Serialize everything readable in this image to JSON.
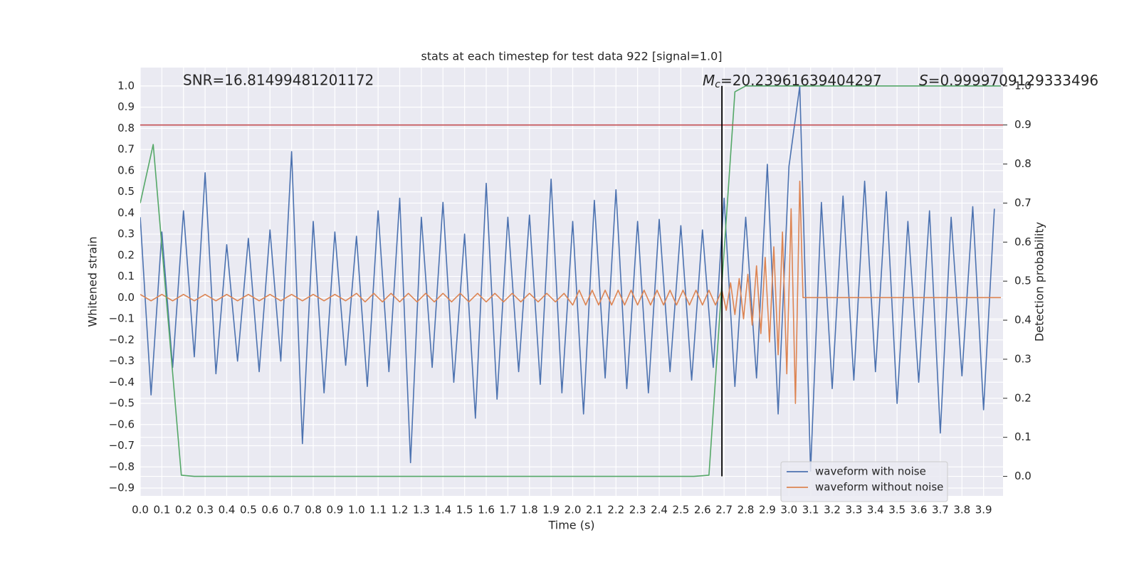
{
  "chart_data": {
    "type": "line",
    "title": "stats at each timestep for test data 922 [signal=1.0]",
    "xlabel": "Time (s)",
    "ylabel": "Whitened strain",
    "y2label": "Detection probability",
    "grid": true,
    "legend": "lower right",
    "xlim": [
      0,
      3.99
    ],
    "ylim": [
      -0.937,
      1.087
    ],
    "y2lim": [
      -0.05,
      1.047
    ],
    "xticks": [
      {
        "value": 0,
        "label": "0.0"
      },
      {
        "value": 0.1,
        "label": "0.1"
      },
      {
        "value": 0.2,
        "label": "0.2"
      },
      {
        "value": 0.3,
        "label": "0.3"
      },
      {
        "value": 0.4,
        "label": "0.4"
      },
      {
        "value": 0.5,
        "label": "0.5"
      },
      {
        "value": 0.6,
        "label": "0.6"
      },
      {
        "value": 0.7,
        "label": "0.7"
      },
      {
        "value": 0.8,
        "label": "0.8"
      },
      {
        "value": 0.9,
        "label": "0.9"
      },
      {
        "value": 1.0,
        "label": "1.0"
      },
      {
        "value": 1.1,
        "label": "1.1"
      },
      {
        "value": 1.2,
        "label": "1.2"
      },
      {
        "value": 1.3,
        "label": "1.3"
      },
      {
        "value": 1.4,
        "label": "1.4"
      },
      {
        "value": 1.5,
        "label": "1.5"
      },
      {
        "value": 1.6,
        "label": "1.6"
      },
      {
        "value": 1.7,
        "label": "1.7"
      },
      {
        "value": 1.8,
        "label": "1.8"
      },
      {
        "value": 1.9,
        "label": "1.9"
      },
      {
        "value": 2.0,
        "label": "2.0"
      },
      {
        "value": 2.1,
        "label": "2.1"
      },
      {
        "value": 2.2,
        "label": "2.2"
      },
      {
        "value": 2.3,
        "label": "2.3"
      },
      {
        "value": 2.4,
        "label": "2.4"
      },
      {
        "value": 2.5,
        "label": "2.5"
      },
      {
        "value": 2.6,
        "label": "2.6"
      },
      {
        "value": 2.7,
        "label": "2.7"
      },
      {
        "value": 2.8,
        "label": "2.8"
      },
      {
        "value": 2.9,
        "label": "2.9"
      },
      {
        "value": 3.0,
        "label": "3.0"
      },
      {
        "value": 3.1,
        "label": "3.1"
      },
      {
        "value": 3.2,
        "label": "3.2"
      },
      {
        "value": 3.3,
        "label": "3.3"
      },
      {
        "value": 3.4,
        "label": "3.4"
      },
      {
        "value": 3.5,
        "label": "3.5"
      },
      {
        "value": 3.6,
        "label": "3.6"
      },
      {
        "value": 3.7,
        "label": "3.7"
      },
      {
        "value": 3.8,
        "label": "3.8"
      },
      {
        "value": 3.9,
        "label": "3.9"
      }
    ],
    "yticks": [
      {
        "value": -0.9,
        "label": "−0.9"
      },
      {
        "value": -0.8,
        "label": "−0.8"
      },
      {
        "value": -0.7,
        "label": "−0.7"
      },
      {
        "value": -0.6,
        "label": "−0.6"
      },
      {
        "value": -0.5,
        "label": "−0.5"
      },
      {
        "value": -0.4,
        "label": "−0.4"
      },
      {
        "value": -0.3,
        "label": "−0.3"
      },
      {
        "value": -0.2,
        "label": "−0.2"
      },
      {
        "value": -0.1,
        "label": "−0.1"
      },
      {
        "value": 0,
        "label": "0.0"
      },
      {
        "value": 0.1,
        "label": "0.1"
      },
      {
        "value": 0.2,
        "label": "0.2"
      },
      {
        "value": 0.3,
        "label": "0.3"
      },
      {
        "value": 0.4,
        "label": "0.4"
      },
      {
        "value": 0.5,
        "label": "0.5"
      },
      {
        "value": 0.6,
        "label": "0.6"
      },
      {
        "value": 0.7,
        "label": "0.7"
      },
      {
        "value": 0.8,
        "label": "0.8"
      },
      {
        "value": 0.9,
        "label": "0.9"
      },
      {
        "value": 1.0,
        "label": "1.0"
      }
    ],
    "y2ticks": [
      {
        "value": 0,
        "label": "0.0"
      },
      {
        "value": 0.1,
        "label": "0.1"
      },
      {
        "value": 0.2,
        "label": "0.2"
      },
      {
        "value": 0.3,
        "label": "0.3"
      },
      {
        "value": 0.4,
        "label": "0.4"
      },
      {
        "value": 0.5,
        "label": "0.5"
      },
      {
        "value": 0.6,
        "label": "0.6"
      },
      {
        "value": 0.7,
        "label": "0.7"
      },
      {
        "value": 0.8,
        "label": "0.8"
      },
      {
        "value": 0.9,
        "label": "0.9"
      },
      {
        "value": 1.0,
        "label": "1.0"
      }
    ],
    "annotations": {
      "snr": "SNR=16.81499481201172",
      "mass_symbol": "M",
      "mass_subscript": "c",
      "mass_value": "=20.23961639404297",
      "s_symbol": "S",
      "s_value": "=0.9999709129333496"
    },
    "series": [
      {
        "name": "waveform with noise",
        "color": "#4c72b0",
        "axis": "y",
        "x": [
          0,
          0.05,
          0.1,
          0.15,
          0.2,
          0.25,
          0.3,
          0.35,
          0.4,
          0.45,
          0.5,
          0.55,
          0.6,
          0.65,
          0.7,
          0.75,
          0.8,
          0.85,
          0.9,
          0.95,
          1.0,
          1.05,
          1.1,
          1.15,
          1.2,
          1.25,
          1.3,
          1.35,
          1.4,
          1.45,
          1.5,
          1.55,
          1.6,
          1.65,
          1.7,
          1.75,
          1.8,
          1.85,
          1.9,
          1.95,
          2.0,
          2.05,
          2.1,
          2.15,
          2.2,
          2.25,
          2.3,
          2.35,
          2.4,
          2.45,
          2.5,
          2.55,
          2.6,
          2.65,
          2.7,
          2.75,
          2.8,
          2.85,
          2.9,
          2.95,
          3.0,
          3.05,
          3.1,
          3.15,
          3.2,
          3.25,
          3.3,
          3.35,
          3.4,
          3.45,
          3.5,
          3.55,
          3.6,
          3.65,
          3.7,
          3.75,
          3.8,
          3.85,
          3.9,
          3.95
        ],
        "values": [
          0.38,
          -0.46,
          0.31,
          -0.33,
          0.41,
          -0.28,
          0.59,
          -0.36,
          0.25,
          -0.3,
          0.28,
          -0.35,
          0.32,
          -0.3,
          0.69,
          -0.69,
          0.36,
          -0.45,
          0.31,
          -0.32,
          0.29,
          -0.42,
          0.41,
          -0.35,
          0.47,
          -0.78,
          0.38,
          -0.33,
          0.45,
          -0.4,
          0.3,
          -0.57,
          0.54,
          -0.48,
          0.38,
          -0.35,
          0.39,
          -0.41,
          0.56,
          -0.45,
          0.36,
          -0.55,
          0.46,
          -0.38,
          0.51,
          -0.43,
          0.36,
          -0.45,
          0.37,
          -0.35,
          0.34,
          -0.39,
          0.32,
          -0.33,
          0.47,
          -0.42,
          0.38,
          -0.38,
          0.63,
          -0.55,
          0.62,
          1.0,
          -0.82,
          0.45,
          -0.43,
          0.48,
          -0.39,
          0.55,
          -0.35,
          0.5,
          -0.5,
          0.36,
          -0.4,
          0.41,
          -0.64,
          0.38,
          -0.37,
          0.43,
          -0.53,
          0.42
        ]
      },
      {
        "name": "waveform without noise",
        "color": "#dd8452",
        "axis": "y",
        "x": [
          0,
          0.05,
          0.1,
          0.15,
          0.2,
          0.25,
          0.3,
          0.35,
          0.4,
          0.45,
          0.5,
          0.55,
          0.6,
          0.65,
          0.7,
          0.75,
          0.8,
          0.85,
          0.9,
          0.95,
          1.0,
          1.04,
          1.08,
          1.12,
          1.16,
          1.2,
          1.24,
          1.28,
          1.32,
          1.36,
          1.4,
          1.44,
          1.48,
          1.52,
          1.56,
          1.6,
          1.64,
          1.68,
          1.72,
          1.76,
          1.8,
          1.84,
          1.88,
          1.92,
          1.96,
          2.0,
          2.03,
          2.06,
          2.09,
          2.12,
          2.15,
          2.18,
          2.21,
          2.24,
          2.27,
          2.3,
          2.33,
          2.36,
          2.39,
          2.42,
          2.45,
          2.48,
          2.51,
          2.54,
          2.57,
          2.6,
          2.63,
          2.66,
          2.69,
          2.71,
          2.73,
          2.75,
          2.77,
          2.79,
          2.81,
          2.83,
          2.85,
          2.87,
          2.89,
          2.91,
          2.93,
          2.95,
          2.97,
          2.99,
          3.01,
          3.03,
          3.05,
          3.065,
          3.98
        ],
        "values": [
          0.015,
          -0.015,
          0.015,
          -0.015,
          0.015,
          -0.015,
          0.015,
          -0.015,
          0.015,
          -0.015,
          0.015,
          -0.015,
          0.015,
          -0.015,
          0.015,
          -0.015,
          0.015,
          -0.015,
          0.015,
          -0.015,
          0.02,
          -0.02,
          0.02,
          -0.02,
          0.02,
          -0.02,
          0.02,
          -0.02,
          0.02,
          -0.02,
          0.02,
          -0.02,
          0.02,
          -0.02,
          0.02,
          -0.02,
          0.02,
          -0.02,
          0.02,
          -0.02,
          0.02,
          -0.02,
          0.02,
          -0.02,
          0.02,
          -0.035,
          0.035,
          -0.035,
          0.035,
          -0.035,
          0.035,
          -0.035,
          0.035,
          -0.035,
          0.035,
          -0.035,
          0.035,
          -0.035,
          0.035,
          -0.035,
          0.035,
          -0.035,
          0.035,
          -0.035,
          0.035,
          -0.035,
          0.035,
          -0.035,
          0.035,
          -0.06,
          0.07,
          -0.08,
          0.09,
          -0.1,
          0.11,
          -0.13,
          0.15,
          -0.17,
          0.19,
          -0.21,
          0.24,
          -0.27,
          0.31,
          -0.36,
          0.42,
          -0.5,
          0.55,
          0,
          0
        ]
      },
      {
        "color": "#55a868",
        "axis": "y2",
        "x": [
          0,
          0.06,
          0.19,
          0.25,
          2.56,
          2.63,
          2.75,
          2.8,
          3.98
        ],
        "values": [
          0.7,
          0.85,
          0.003,
          0,
          0,
          0.003,
          0.985,
          1.0,
          1.0
        ]
      }
    ],
    "hline": {
      "value": 0.9,
      "axis": "y2",
      "color": "#c44e52"
    },
    "vline": {
      "x": 2.69,
      "from": 0,
      "to": 1.0,
      "axis": "y2",
      "color": "#000000"
    }
  }
}
